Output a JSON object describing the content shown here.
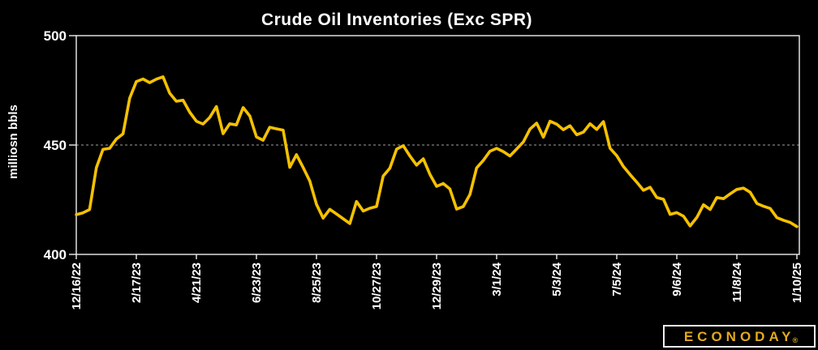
{
  "chart_data": {
    "type": "line",
    "title": "Crude Oil Inventories (Exc SPR)",
    "ylabel": "milliosn bbls",
    "ylim": [
      400,
      500
    ],
    "yticks": [
      500,
      450,
      400
    ],
    "gridline_at": 450,
    "grid": "dashed horizontal line at 450 only",
    "legend_position": "none",
    "line_color": "#f5c100",
    "background_color": "#000000",
    "axis_color": "#efefef",
    "gridline_color": "#a0a0a0",
    "x_tick_labels": [
      "12/16/22",
      "2/17/23",
      "4/21/23",
      "6/23/23",
      "8/25/23",
      "10/27/23",
      "12/29/23",
      "3/1/24",
      "5/3/24",
      "7/5/24",
      "9/6/24",
      "11/8/24",
      "1/10/25"
    ],
    "x_tick_interval_weeks": 9,
    "x_start": "12/16/22",
    "x_end": "1/10/25",
    "series": [
      {
        "name": "Crude Oil Inventories (Exc SPR), million barrels, weekly",
        "values": [
          418.2,
          419.0,
          420.5,
          439.6,
          448.0,
          448.5,
          452.7,
          455.1,
          471.4,
          479.0,
          480.2,
          478.5,
          480.1,
          481.2,
          473.7,
          470.0,
          470.5,
          465.0,
          460.9,
          459.6,
          462.6,
          467.6,
          455.2,
          459.7,
          459.2,
          467.1,
          463.3,
          453.7,
          452.2,
          458.1,
          457.4,
          456.8,
          439.8,
          445.6,
          439.7,
          433.5,
          422.9,
          416.6,
          420.6,
          418.5,
          416.3,
          414.1,
          424.2,
          419.8,
          421.1,
          421.9,
          435.8,
          439.4,
          448.1,
          449.7,
          445.0,
          440.8,
          443.7,
          436.6,
          431.1,
          432.4,
          429.9,
          420.7,
          421.9,
          427.4,
          439.5,
          443.0,
          447.2,
          448.5,
          447.0,
          445.0,
          448.2,
          451.4,
          457.3,
          460.0,
          453.6,
          460.9,
          459.5,
          457.0,
          458.8,
          454.7,
          455.9,
          459.7,
          457.1,
          460.7,
          448.5,
          445.1,
          440.2,
          436.5,
          433.0,
          429.3,
          430.7,
          426.0,
          425.2,
          418.3,
          419.1,
          417.5,
          413.0,
          416.9,
          422.7,
          420.5,
          426.0,
          425.5,
          427.7,
          429.7,
          430.3,
          428.4,
          423.3,
          422.0,
          421.0,
          416.8,
          415.6,
          414.6,
          412.7
        ]
      }
    ]
  },
  "logo": {
    "text": "ECONODAY",
    "registered": "®"
  }
}
